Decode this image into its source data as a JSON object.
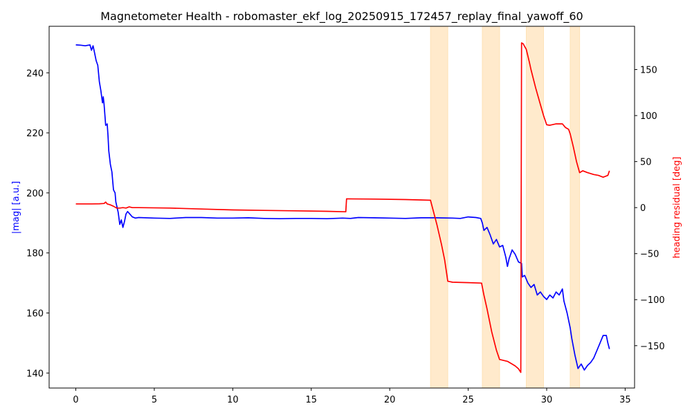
{
  "chart_data": {
    "type": "line",
    "title": "Magnetometer Health - robomaster_ekf_log_20250915_172457_replay_final_yawoff_60",
    "xlabel": "",
    "ylabel_left": "|mag| [a.u.]",
    "ylabel_right": "heading residual [deg]",
    "xlim": [
      -1.7,
      35.6
    ],
    "ylim_left": [
      135,
      255.5
    ],
    "ylim_right": [
      -196,
      197
    ],
    "x_ticks": [
      0,
      5,
      10,
      15,
      20,
      25,
      30,
      35
    ],
    "y_ticks_left": [
      140,
      160,
      180,
      200,
      220,
      240
    ],
    "y_ticks_right": [
      -150,
      -100,
      -50,
      0,
      50,
      100,
      150
    ],
    "grid": false,
    "highlight_color": "#ffeacc",
    "highlight_edge": "#fde2b6",
    "highlight_spans": [
      [
        22.6,
        23.7
      ],
      [
        25.9,
        27.0
      ],
      [
        28.7,
        29.8
      ],
      [
        31.5,
        32.1
      ]
    ],
    "series": [
      {
        "axis": "left",
        "color": "#0000ff",
        "points": [
          [
            0.0,
            249.3
          ],
          [
            0.3,
            249.2
          ],
          [
            0.6,
            249.0
          ],
          [
            0.9,
            249.3
          ],
          [
            1.0,
            247.5
          ],
          [
            1.1,
            249.0
          ],
          [
            1.2,
            246.5
          ],
          [
            1.3,
            244.0
          ],
          [
            1.4,
            242.5
          ],
          [
            1.5,
            237.0
          ],
          [
            1.6,
            234.0
          ],
          [
            1.7,
            230.0
          ],
          [
            1.75,
            232.0
          ],
          [
            1.8,
            229.5
          ],
          [
            1.9,
            222.5
          ],
          [
            2.0,
            223.0
          ],
          [
            2.05,
            219.0
          ],
          [
            2.1,
            214.0
          ],
          [
            2.2,
            209.5
          ],
          [
            2.3,
            207.0
          ],
          [
            2.4,
            201.0
          ],
          [
            2.5,
            200.0
          ],
          [
            2.55,
            197.0
          ],
          [
            2.7,
            193.5
          ],
          [
            2.8,
            189.5
          ],
          [
            2.9,
            191.0
          ],
          [
            3.0,
            188.5
          ],
          [
            3.1,
            190.5
          ],
          [
            3.2,
            193.0
          ],
          [
            3.3,
            193.8
          ],
          [
            3.4,
            193.2
          ],
          [
            3.6,
            192.0
          ],
          [
            3.8,
            191.6
          ],
          [
            4.0,
            191.8
          ],
          [
            5.0,
            191.6
          ],
          [
            6.0,
            191.5
          ],
          [
            7.0,
            191.8
          ],
          [
            8.0,
            191.8
          ],
          [
            9.0,
            191.6
          ],
          [
            10.0,
            191.6
          ],
          [
            11.0,
            191.7
          ],
          [
            12.0,
            191.5
          ],
          [
            13.0,
            191.4
          ],
          [
            14.0,
            191.5
          ],
          [
            15.0,
            191.5
          ],
          [
            16.0,
            191.4
          ],
          [
            17.0,
            191.6
          ],
          [
            17.5,
            191.5
          ],
          [
            18.0,
            191.8
          ],
          [
            19.0,
            191.7
          ],
          [
            20.0,
            191.6
          ],
          [
            21.0,
            191.5
          ],
          [
            22.0,
            191.7
          ],
          [
            23.0,
            191.7
          ],
          [
            24.0,
            191.6
          ],
          [
            24.5,
            191.5
          ],
          [
            25.0,
            192.0
          ],
          [
            25.5,
            191.8
          ],
          [
            25.8,
            191.5
          ],
          [
            25.9,
            190.0
          ],
          [
            26.0,
            187.5
          ],
          [
            26.2,
            188.5
          ],
          [
            26.4,
            186.0
          ],
          [
            26.6,
            183.0
          ],
          [
            26.8,
            184.5
          ],
          [
            27.0,
            182.0
          ],
          [
            27.2,
            182.5
          ],
          [
            27.4,
            178.5
          ],
          [
            27.5,
            175.5
          ],
          [
            27.6,
            178.0
          ],
          [
            27.8,
            181.0
          ],
          [
            28.0,
            179.5
          ],
          [
            28.2,
            177.0
          ],
          [
            28.4,
            176.5
          ],
          [
            28.45,
            172.0
          ],
          [
            28.6,
            172.5
          ],
          [
            28.8,
            170.0
          ],
          [
            29.0,
            168.5
          ],
          [
            29.2,
            169.5
          ],
          [
            29.4,
            166.0
          ],
          [
            29.6,
            167.0
          ],
          [
            29.8,
            165.5
          ],
          [
            30.0,
            164.5
          ],
          [
            30.2,
            166.0
          ],
          [
            30.4,
            165.0
          ],
          [
            30.6,
            167.0
          ],
          [
            30.8,
            166.0
          ],
          [
            31.0,
            168.0
          ],
          [
            31.1,
            164.0
          ],
          [
            31.3,
            160.0
          ],
          [
            31.5,
            155.0
          ],
          [
            31.6,
            151.5
          ],
          [
            31.8,
            146.0
          ],
          [
            32.0,
            141.5
          ],
          [
            32.2,
            143.0
          ],
          [
            32.4,
            141.0
          ],
          [
            32.6,
            142.5
          ],
          [
            32.8,
            143.5
          ],
          [
            33.0,
            145.0
          ],
          [
            33.2,
            147.5
          ],
          [
            33.4,
            150.0
          ],
          [
            33.6,
            152.5
          ],
          [
            33.8,
            152.5
          ],
          [
            33.9,
            150.0
          ],
          [
            34.0,
            148.0
          ]
        ]
      },
      {
        "axis": "right",
        "color": "#ff0000",
        "points": [
          [
            0.0,
            4.0
          ],
          [
            0.5,
            4.0
          ],
          [
            1.0,
            4.0
          ],
          [
            1.5,
            4.2
          ],
          [
            1.8,
            4.5
          ],
          [
            1.9,
            6.0
          ],
          [
            2.0,
            4.0
          ],
          [
            2.2,
            3.0
          ],
          [
            2.4,
            1.5
          ],
          [
            2.6,
            -0.5
          ],
          [
            2.8,
            -0.5
          ],
          [
            3.0,
            0.0
          ],
          [
            3.2,
            -0.5
          ],
          [
            3.4,
            0.8
          ],
          [
            3.6,
            0.0
          ],
          [
            4.0,
            0.0
          ],
          [
            6.0,
            -0.5
          ],
          [
            8.0,
            -1.5
          ],
          [
            10.0,
            -2.5
          ],
          [
            12.0,
            -3.0
          ],
          [
            14.0,
            -3.5
          ],
          [
            16.0,
            -4.0
          ],
          [
            17.2,
            -4.5
          ],
          [
            17.25,
            9.5
          ],
          [
            19.0,
            9.3
          ],
          [
            21.0,
            8.8
          ],
          [
            22.6,
            8.0
          ],
          [
            23.0,
            -18.0
          ],
          [
            23.3,
            -40.0
          ],
          [
            23.5,
            -57.0
          ],
          [
            23.7,
            -80.0
          ],
          [
            24.0,
            -81.0
          ],
          [
            25.0,
            -81.5
          ],
          [
            25.85,
            -82.0
          ],
          [
            26.0,
            -95.0
          ],
          [
            26.2,
            -110.0
          ],
          [
            26.5,
            -135.0
          ],
          [
            26.8,
            -155.0
          ],
          [
            27.0,
            -165.0
          ],
          [
            27.5,
            -167.0
          ],
          [
            27.8,
            -170.0
          ],
          [
            28.0,
            -172.0
          ],
          [
            28.2,
            -175.0
          ],
          [
            28.35,
            -179.0
          ],
          [
            28.4,
            179.0
          ],
          [
            28.5,
            178.0
          ],
          [
            28.7,
            172.0
          ],
          [
            28.9,
            158.0
          ],
          [
            29.0,
            150.0
          ],
          [
            29.3,
            130.0
          ],
          [
            29.6,
            112.0
          ],
          [
            29.8,
            100.0
          ],
          [
            30.0,
            90.0
          ],
          [
            30.2,
            89.5
          ],
          [
            30.6,
            91.0
          ],
          [
            31.0,
            91.0
          ],
          [
            31.2,
            87.0
          ],
          [
            31.4,
            85.0
          ],
          [
            31.5,
            80.0
          ],
          [
            31.7,
            66.0
          ],
          [
            31.9,
            50.0
          ],
          [
            32.1,
            38.0
          ],
          [
            32.3,
            40.0
          ],
          [
            32.6,
            38.0
          ],
          [
            33.0,
            36.0
          ],
          [
            33.3,
            35.0
          ],
          [
            33.6,
            33.0
          ],
          [
            33.9,
            35.0
          ],
          [
            34.0,
            40.0
          ]
        ]
      }
    ]
  }
}
